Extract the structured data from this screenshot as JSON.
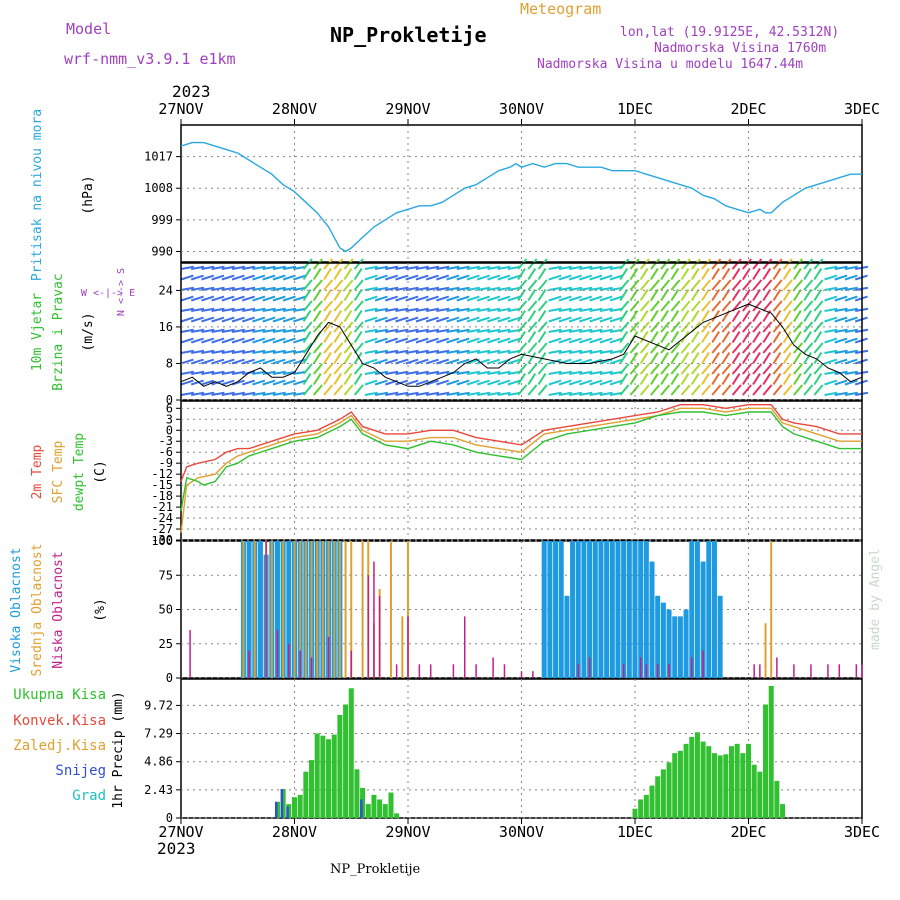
{
  "header": {
    "model_label": "Model",
    "model_name": "wrf-nmm_v3.9.1 e1km",
    "title": "NP_Prokletije",
    "meteogram": "Meteogram",
    "lonlat": "lon,lat (19.9125E, 42.5312N)",
    "elev": "Nadmorska Visina 1760m",
    "elev_model": "Nadmorska Visina u modelu 1647.44m",
    "year_top": "2023",
    "year_bottom": "2023",
    "footer": "NP_Prokletije",
    "credit": "made by Angel"
  },
  "colors": {
    "pressure": "#29a8e0",
    "temp2m": "#e8483c",
    "sfc": "#e0a030",
    "dewpt": "#30c030",
    "high_cloud": "#1e9be0",
    "mid_cloud": "#e0a030",
    "low_cloud": "#c0208a",
    "total_precip": "#30c030",
    "conv_precip": "#e8483c",
    "snow": "#3050d0",
    "graupel": "#20c0c0",
    "wind_speed": "#000000",
    "gust": "#e8483c",
    "purple": "#a040c0"
  },
  "chart_data": [
    {
      "type": "line",
      "panel": "pressure",
      "ylabel_lines": [
        "Pritisak na nivou mora"
      ],
      "unit": "(hPa)",
      "x_ticks": [
        "27NOV",
        "28NOV",
        "29NOV",
        "30NOV",
        "1DEC",
        "2DEC",
        "3DEC"
      ],
      "ylim": [
        987,
        1026
      ],
      "y_ticks": [
        "1017",
        "1008",
        "999",
        "990"
      ],
      "y_tick_values": [
        1017,
        1008,
        999,
        990
      ],
      "series": [
        {
          "x": [
            0,
            0.1,
            0.2,
            0.3,
            0.4,
            0.5,
            0.6,
            0.7,
            0.8,
            0.9,
            1.0,
            1.1,
            1.2,
            1.3,
            1.35,
            1.4,
            1.45,
            1.5,
            1.6,
            1.7,
            1.8,
            1.9,
            2.0,
            2.1,
            2.2,
            2.3,
            2.4,
            2.5,
            2.6,
            2.7,
            2.8,
            2.9,
            2.95,
            3.0,
            3.1,
            3.2,
            3.3,
            3.4,
            3.5,
            3.6,
            3.7,
            3.8,
            3.9,
            4.0,
            4.1,
            4.2,
            4.3,
            4.4,
            4.5,
            4.6,
            4.7,
            4.8,
            4.9,
            5.0,
            5.1,
            5.15,
            5.2,
            5.3,
            5.4,
            5.5,
            5.6,
            5.7,
            5.8,
            5.9,
            6.0
          ],
          "values": [
            1020,
            1021,
            1021,
            1020,
            1019,
            1018,
            1016,
            1014,
            1012,
            1009,
            1007,
            1004,
            1001,
            997,
            994,
            991,
            990,
            991,
            994,
            997,
            999,
            1001,
            1002,
            1003,
            1003,
            1004,
            1006,
            1008,
            1009,
            1011,
            1013,
            1014,
            1015,
            1014,
            1015,
            1014,
            1015,
            1015,
            1014,
            1014,
            1014,
            1013,
            1013,
            1013,
            1012,
            1011,
            1010,
            1009,
            1008,
            1006,
            1005,
            1003,
            1002,
            1001,
            1002,
            1001,
            1001,
            1004,
            1006,
            1008,
            1009,
            1010,
            1011,
            1012,
            1012
          ]
        }
      ]
    },
    {
      "type": "line",
      "panel": "wind",
      "ylabel_lines": [
        "10m Vjetar",
        "Brzina i Pravac"
      ],
      "unit": "(m/s)",
      "direction_key": "N <--> S",
      "direction_key2": "W <-|-> E",
      "ylim": [
        0,
        30
      ],
      "y_ticks": [
        "24",
        "16",
        "8",
        "0"
      ],
      "y_tick_values": [
        24,
        16,
        8,
        0
      ],
      "series": [
        {
          "name": "wind_speed",
          "x": [
            0,
            0.1,
            0.2,
            0.3,
            0.4,
            0.5,
            0.6,
            0.7,
            0.8,
            0.9,
            1.0,
            1.1,
            1.2,
            1.3,
            1.4,
            1.5,
            1.6,
            1.7,
            1.8,
            1.9,
            2.0,
            2.1,
            2.2,
            2.3,
            2.4,
            2.5,
            2.6,
            2.7,
            2.8,
            2.9,
            3.0,
            3.2,
            3.4,
            3.6,
            3.8,
            3.9,
            4.0,
            4.1,
            4.2,
            4.3,
            4.4,
            4.5,
            4.6,
            4.7,
            4.8,
            4.9,
            5.0,
            5.1,
            5.2,
            5.3,
            5.4,
            5.5,
            5.6,
            5.7,
            5.8,
            5.9,
            6.0
          ],
          "values": [
            4,
            5,
            3,
            4,
            3,
            4,
            6,
            7,
            5,
            5,
            6,
            10,
            14,
            17,
            16,
            12,
            8,
            7,
            5,
            4,
            3,
            3,
            4,
            5,
            6,
            8,
            9,
            7,
            7,
            9,
            10,
            9,
            8,
            8,
            9,
            10,
            14,
            13,
            12,
            11,
            13,
            15,
            17,
            18,
            19,
            20,
            21,
            20,
            19,
            16,
            12,
            10,
            9,
            7,
            6,
            4,
            5
          ]
        }
      ]
    },
    {
      "type": "line",
      "panel": "temperature",
      "ylabel_lines": [
        "2m Temp",
        "SFC Temp",
        "dewpt Temp"
      ],
      "unit": "(C)",
      "ylim": [
        -30,
        8
      ],
      "y_ticks": [
        "6",
        "3",
        "0",
        "-3",
        "-6",
        "-9",
        "-12",
        "-15",
        "-18",
        "-21",
        "-24",
        "-27",
        "-30"
      ],
      "y_tick_values": [
        6,
        3,
        0,
        -3,
        -6,
        -9,
        -12,
        -15,
        -18,
        -21,
        -24,
        -27,
        -30
      ],
      "series": [
        {
          "name": "2m Temp",
          "x": [
            0,
            0.05,
            0.15,
            0.3,
            0.4,
            0.5,
            0.6,
            0.8,
            1.0,
            1.2,
            1.4,
            1.5,
            1.6,
            1.8,
            2.0,
            2.2,
            2.4,
            2.6,
            2.8,
            3.0,
            3.2,
            3.4,
            3.6,
            3.8,
            4.0,
            4.2,
            4.4,
            4.6,
            4.8,
            5.0,
            5.2,
            5.3,
            5.4,
            5.6,
            5.8,
            6.0
          ],
          "values": [
            -14,
            -10,
            -9,
            -8,
            -6,
            -5,
            -5,
            -3,
            -1,
            0,
            3,
            5,
            1,
            -1,
            -1,
            0,
            0,
            -2,
            -3,
            -4,
            0,
            1,
            2,
            3,
            4,
            5,
            7,
            7,
            6,
            7,
            7,
            3,
            2,
            1,
            -1,
            -1
          ]
        },
        {
          "name": "SFC Temp",
          "x": [
            0,
            0.05,
            0.15,
            0.3,
            0.4,
            0.5,
            0.6,
            0.8,
            1.0,
            1.2,
            1.4,
            1.5,
            1.6,
            1.8,
            2.0,
            2.2,
            2.4,
            2.6,
            2.8,
            3.0,
            3.2,
            3.4,
            3.6,
            3.8,
            4.0,
            4.2,
            4.4,
            4.6,
            4.8,
            5.0,
            5.2,
            5.3,
            5.4,
            5.6,
            5.8,
            6.0
          ],
          "values": [
            -28,
            -15,
            -13,
            -12,
            -9,
            -7,
            -6,
            -4,
            -2,
            -1,
            2,
            4,
            0,
            -3,
            -3,
            -2,
            -2,
            -4,
            -5,
            -6,
            -1,
            0,
            1,
            2,
            3,
            4,
            6,
            6,
            5,
            6,
            6,
            2,
            1,
            -1,
            -3,
            -3
          ]
        },
        {
          "name": "dewpt Temp",
          "x": [
            0,
            0.05,
            0.15,
            0.2,
            0.3,
            0.4,
            0.5,
            0.6,
            0.8,
            1.0,
            1.2,
            1.4,
            1.5,
            1.6,
            1.8,
            2.0,
            2.2,
            2.4,
            2.6,
            2.8,
            3.0,
            3.2,
            3.4,
            3.6,
            3.8,
            4.0,
            4.2,
            4.4,
            4.6,
            4.8,
            5.0,
            5.2,
            5.3,
            5.4,
            5.6,
            5.8,
            6.0
          ],
          "values": [
            -22,
            -13,
            -14,
            -15,
            -14,
            -10,
            -9,
            -7,
            -5,
            -3,
            -2,
            1,
            3,
            -1,
            -4,
            -5,
            -3,
            -4,
            -6,
            -7,
            -8,
            -3,
            -1,
            0,
            1,
            2,
            4,
            5,
            5,
            4,
            5,
            5,
            1,
            -1,
            -3,
            -5,
            -5
          ]
        }
      ]
    },
    {
      "type": "bar",
      "panel": "clouds",
      "ylabel_lines": [
        "Visoka Oblacnost",
        "Srednja Oblacnost",
        "Niska Oblacnost"
      ],
      "unit": "(%)",
      "ylim": [
        0,
        100
      ],
      "y_ticks": [
        "100",
        "75",
        "50",
        "25",
        "0"
      ],
      "y_tick_values": [
        100,
        75,
        50,
        25,
        0
      ],
      "series": [
        {
          "name": "Visoka Oblacnost",
          "x": [
            0.55,
            0.6,
            0.65,
            0.7,
            0.75,
            0.8,
            0.85,
            0.9,
            0.95,
            1.0,
            1.05,
            1.1,
            1.15,
            1.2,
            1.25,
            1.3,
            1.35,
            1.4,
            3.2,
            3.25,
            3.3,
            3.35,
            3.4,
            3.45,
            3.5,
            3.55,
            3.6,
            3.65,
            3.7,
            3.75,
            3.8,
            3.85,
            3.9,
            3.95,
            4.0,
            4.05,
            4.1,
            4.15,
            4.2,
            4.25,
            4.3,
            4.35,
            4.4,
            4.45,
            4.5,
            4.55,
            4.6,
            4.65,
            4.7,
            4.75
          ],
          "values": [
            100,
            100,
            100,
            100,
            90,
            100,
            100,
            100,
            100,
            100,
            100,
            100,
            100,
            100,
            100,
            100,
            100,
            100,
            100,
            100,
            100,
            100,
            60,
            100,
            100,
            100,
            100,
            100,
            100,
            100,
            100,
            100,
            100,
            100,
            100,
            100,
            100,
            85,
            60,
            55,
            50,
            45,
            45,
            50,
            100,
            100,
            85,
            100,
            100,
            60
          ]
        },
        {
          "name": "Srednja Oblacnost",
          "x": [
            0.55,
            0.65,
            0.75,
            0.8,
            0.9,
            1.0,
            1.05,
            1.1,
            1.15,
            1.2,
            1.25,
            1.3,
            1.35,
            1.4,
            1.45,
            1.5,
            1.6,
            1.65,
            1.7,
            1.75,
            1.85,
            1.95,
            2.0,
            5.15,
            5.2
          ],
          "values": [
            100,
            100,
            100,
            100,
            100,
            100,
            100,
            100,
            100,
            100,
            100,
            100,
            100,
            100,
            100,
            100,
            100,
            100,
            40,
            65,
            100,
            45,
            100,
            40,
            100
          ]
        },
        {
          "name": "Niska Oblacnost",
          "x": [
            0.08,
            0.6,
            0.75,
            0.85,
            0.95,
            1.05,
            1.15,
            1.3,
            1.5,
            1.65,
            1.7,
            1.75,
            1.9,
            2.0,
            2.1,
            2.2,
            2.4,
            2.5,
            2.6,
            2.75,
            2.85,
            3.0,
            3.1,
            3.5,
            3.6,
            3.9,
            4.05,
            4.1,
            4.2,
            4.3,
            4.5,
            4.6,
            5.05,
            5.1,
            5.25,
            5.4,
            5.55,
            5.7,
            5.8,
            5.95,
            6.0
          ],
          "values": [
            35,
            20,
            100,
            35,
            25,
            20,
            15,
            30,
            20,
            75,
            85,
            60,
            10,
            45,
            10,
            10,
            10,
            45,
            10,
            15,
            10,
            5,
            5,
            10,
            15,
            10,
            15,
            10,
            10,
            10,
            15,
            20,
            10,
            10,
            15,
            10,
            10,
            10,
            10,
            10,
            10
          ]
        }
      ]
    },
    {
      "type": "bar",
      "panel": "precip",
      "ylabel": "1hr Precip (mm)",
      "legend": [
        "Ukupna Kisa",
        "Konvek.Kisa",
        "Zaledj.Kisa",
        "Snijeg",
        "Grad"
      ],
      "ylim": [
        0,
        12
      ],
      "y_ticks": [
        "9.72",
        "7.29",
        "4.86",
        "2.43",
        "0"
      ],
      "y_tick_values": [
        9.72,
        7.29,
        4.86,
        2.43,
        0
      ],
      "x_ticks": [
        "27NOV",
        "28NOV",
        "29NOV",
        "30NOV",
        "1DEC",
        "2DEC",
        "3DEC"
      ],
      "series": [
        {
          "name": "Ukupna Kisa",
          "x": [
            0.85,
            0.9,
            0.95,
            1.0,
            1.05,
            1.1,
            1.15,
            1.2,
            1.25,
            1.3,
            1.35,
            1.4,
            1.45,
            1.5,
            1.55,
            1.6,
            1.65,
            1.7,
            1.75,
            1.8,
            1.85,
            1.9,
            4.0,
            4.05,
            4.1,
            4.15,
            4.2,
            4.25,
            4.3,
            4.35,
            4.4,
            4.45,
            4.5,
            4.55,
            4.6,
            4.65,
            4.7,
            4.75,
            4.8,
            4.85,
            4.9,
            4.95,
            5.0,
            5.05,
            5.1,
            5.15,
            5.2,
            5.25,
            5.3
          ],
          "values": [
            1.4,
            2.5,
            1.2,
            1.8,
            2.0,
            4.0,
            5.0,
            7.3,
            7.1,
            6.8,
            7.2,
            8.9,
            9.8,
            11.2,
            4.2,
            2.6,
            1.2,
            2.0,
            1.6,
            1.2,
            2.2,
            0.4,
            0.8,
            1.6,
            2.0,
            2.8,
            3.6,
            4.2,
            4.8,
            5.6,
            5.8,
            6.4,
            7.0,
            7.4,
            6.6,
            6.2,
            5.6,
            5.4,
            5.5,
            6.2,
            6.4,
            5.6,
            6.4,
            4.6,
            4.0,
            9.8,
            11.4,
            3.2,
            1.2
          ]
        },
        {
          "name": "Snijeg",
          "x": [
            0.85,
            0.9,
            0.95,
            1.6
          ],
          "values": [
            1.4,
            2.5,
            1.0,
            1.6
          ]
        }
      ]
    }
  ]
}
